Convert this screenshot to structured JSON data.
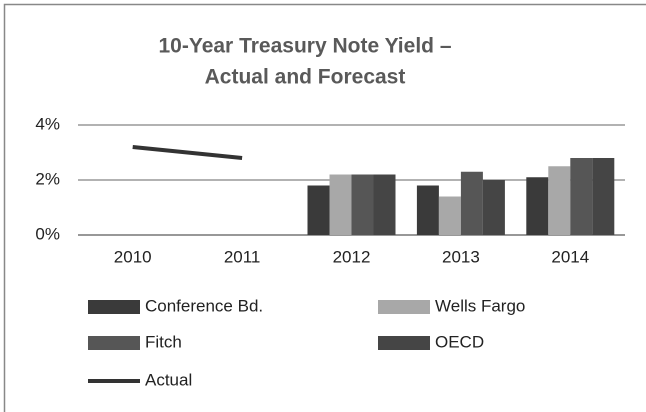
{
  "chart_data": {
    "type": "bar",
    "title": [
      "10-Year Treasury Note Yield –",
      "Actual and Forecast"
    ],
    "categories": [
      "2010",
      "2011",
      "2012",
      "2013",
      "2014"
    ],
    "series": [
      {
        "name": "Conference Bd.",
        "color": "#3a3a3a",
        "values": [
          null,
          null,
          1.8,
          1.8,
          2.1
        ]
      },
      {
        "name": "Wells Fargo",
        "color": "#a8a8a8",
        "values": [
          null,
          null,
          2.2,
          1.4,
          2.5
        ]
      },
      {
        "name": "Fitch",
        "color": "#565656",
        "values": [
          null,
          null,
          2.2,
          2.3,
          2.8
        ]
      },
      {
        "name": "OECD",
        "color": "#454545",
        "values": [
          null,
          null,
          2.2,
          2.0,
          2.8
        ]
      },
      {
        "name": "Actual",
        "color": "#333333",
        "type": "line",
        "values": [
          3.2,
          2.8,
          null,
          null,
          null
        ]
      }
    ],
    "ylim": [
      0,
      4
    ],
    "yticks": [
      {
        "value": 0,
        "label": "0%"
      },
      {
        "value": 2,
        "label": "2%"
      },
      {
        "value": 4,
        "label": "4%"
      }
    ],
    "grid": true,
    "legend": "bottom"
  }
}
